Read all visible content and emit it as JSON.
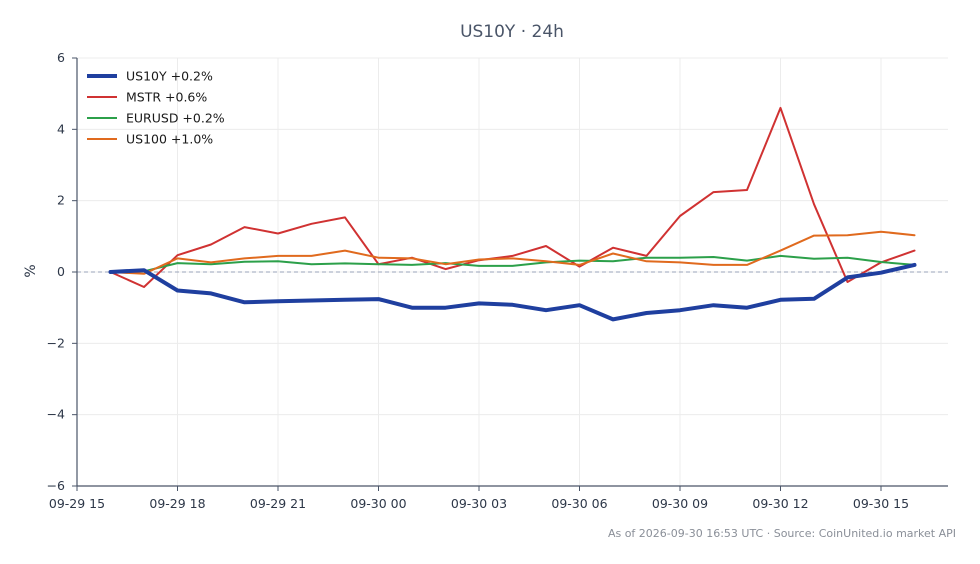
{
  "chart_data": {
    "type": "line",
    "title": "US10Y · 24h",
    "ylabel": "%",
    "xlabel": "",
    "ylim": [
      -6,
      6
    ],
    "yticks": [
      6,
      4,
      2,
      0,
      -2,
      -4,
      -6
    ],
    "ytick_labels": [
      "6",
      "4",
      "2",
      "0",
      "−2",
      "−4",
      "−6"
    ],
    "x_start": "2026-09-29 15:00",
    "x_end": "2026-09-30 17:00",
    "xticks": [
      "2026-09-29 15:00",
      "2026-09-29 18:00",
      "2026-09-29 21:00",
      "2026-09-30 00:00",
      "2026-09-30 03:00",
      "2026-09-30 06:00",
      "2026-09-30 09:00",
      "2026-09-30 12:00",
      "2026-09-30 15:00"
    ],
    "xtick_labels": [
      "09-29 15",
      "09-29 18",
      "09-29 21",
      "09-30 00",
      "09-30 03",
      "09-30 06",
      "09-30 09",
      "09-30 12",
      "09-30 15"
    ],
    "x": [
      "2026-09-29 16:00",
      "2026-09-29 17:00",
      "2026-09-29 18:00",
      "2026-09-29 19:00",
      "2026-09-29 20:00",
      "2026-09-29 21:00",
      "2026-09-29 22:00",
      "2026-09-29 23:00",
      "2026-09-30 00:00",
      "2026-09-30 01:00",
      "2026-09-30 02:00",
      "2026-09-30 03:00",
      "2026-09-30 04:00",
      "2026-09-30 05:00",
      "2026-09-30 06:00",
      "2026-09-30 07:00",
      "2026-09-30 08:00",
      "2026-09-30 09:00",
      "2026-09-30 10:00",
      "2026-09-30 11:00",
      "2026-09-30 12:00",
      "2026-09-30 13:00",
      "2026-09-30 14:00",
      "2026-09-30 15:00",
      "2026-09-30 16:00"
    ],
    "series": [
      {
        "name": "US10Y +0.2%",
        "color": "#1f3f9f",
        "width": 4,
        "values": [
          0.0,
          0.05,
          -0.52,
          -0.6,
          -0.85,
          -0.82,
          -0.8,
          -0.78,
          -0.76,
          -1.0,
          -1.0,
          -0.88,
          -0.92,
          -1.07,
          -0.93,
          -1.33,
          -1.15,
          -1.07,
          -0.93,
          -1.0,
          -0.78,
          -0.75,
          -0.15,
          -0.02,
          0.2
        ]
      },
      {
        "name": "MSTR +0.6%",
        "color": "#d03232",
        "width": 2,
        "values": [
          0.0,
          -0.42,
          0.47,
          0.77,
          1.26,
          1.08,
          1.35,
          1.53,
          0.22,
          0.4,
          0.08,
          0.33,
          0.45,
          0.73,
          0.15,
          0.68,
          0.45,
          1.57,
          2.24,
          2.3,
          4.6,
          1.9,
          -0.28,
          0.27,
          0.6
        ]
      },
      {
        "name": "EURUSD +0.2%",
        "color": "#2ca04a",
        "width": 2,
        "values": [
          0.0,
          0.02,
          0.25,
          0.22,
          0.29,
          0.3,
          0.22,
          0.24,
          0.22,
          0.2,
          0.25,
          0.17,
          0.17,
          0.27,
          0.32,
          0.3,
          0.4,
          0.4,
          0.42,
          0.32,
          0.45,
          0.37,
          0.4,
          0.28,
          0.2
        ]
      },
      {
        "name": "US100 +1.0%",
        "color": "#e06a1e",
        "width": 2,
        "values": [
          0.0,
          -0.05,
          0.38,
          0.27,
          0.38,
          0.45,
          0.45,
          0.6,
          0.4,
          0.38,
          0.22,
          0.35,
          0.38,
          0.3,
          0.2,
          0.52,
          0.3,
          0.27,
          0.2,
          0.2,
          0.6,
          1.02,
          1.03,
          1.13,
          1.03
        ]
      }
    ],
    "zero_line": true,
    "grid": true,
    "legend": "top-left",
    "footer": "As of 2026-09-30 16:53 UTC · Source: CoinUnited.io market API"
  }
}
